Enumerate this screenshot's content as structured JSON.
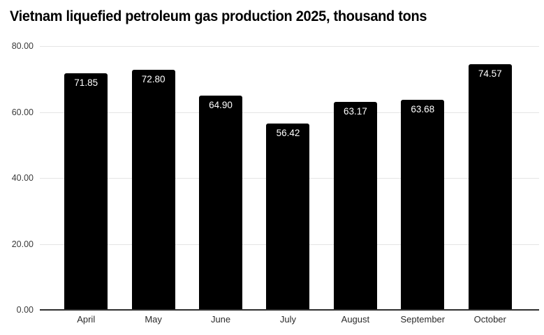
{
  "title": "Vietnam liquefied petroleum gas production 2025, thousand tons",
  "chart_data": {
    "type": "bar",
    "title": "Vietnam liquefied petroleum gas production 2025, thousand tons",
    "xlabel": "",
    "ylabel": "",
    "categories": [
      "April",
      "May",
      "June",
      "July",
      "August",
      "September",
      "October"
    ],
    "values": [
      71.85,
      72.8,
      64.9,
      56.42,
      63.17,
      63.68,
      74.57
    ],
    "value_labels": [
      "71.85",
      "72.80",
      "64.90",
      "56.42",
      "63.17",
      "63.68",
      "74.57"
    ],
    "ylim": [
      0,
      80
    ],
    "y_ticks": [
      0,
      20,
      40,
      60,
      80
    ],
    "y_tick_labels": [
      "0.00",
      "20.00",
      "40.00",
      "60.00",
      "80.00"
    ],
    "grid": true,
    "legend": false,
    "colors": {
      "bar": "#000000",
      "value_label": "#ffffff",
      "gridline": "#e4e4e4",
      "axis_line": "#2f2f2f",
      "background": "#ffffff",
      "title_text": "#000000",
      "tick_text": "#3a3a3a"
    }
  }
}
